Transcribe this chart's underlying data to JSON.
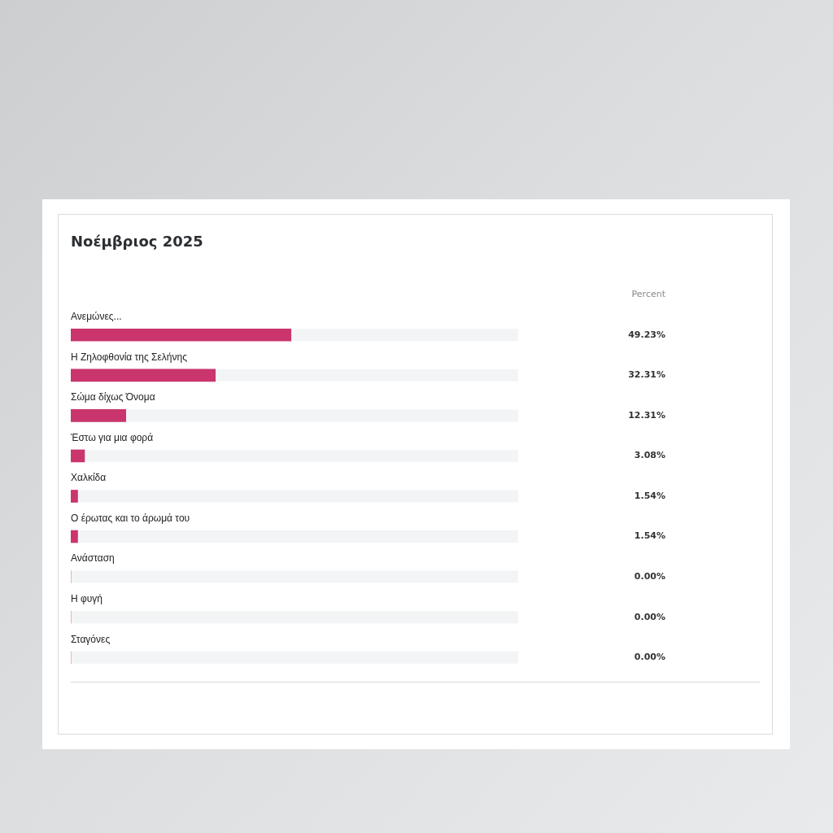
{
  "chart_data": {
    "type": "bar",
    "orientation": "horizontal",
    "title": "Νοέμβριος 2025",
    "categories": [
      "Ανεμώνες...",
      "Η Ζηλοφθονία της Σελήνης",
      "Σώμα δίχως Όνομα",
      "Έστω για μια φορά",
      "Χαλκίδα",
      "Ο έρωτας και το άρωμά του",
      "Ανάσταση",
      "Η φυγή",
      "Σταγόνες"
    ],
    "values": [
      49.23,
      32.31,
      12.31,
      3.08,
      1.54,
      1.54,
      0,
      0,
      0
    ],
    "value_labels": [
      "49.23%",
      "32.31%",
      "12.31%",
      "3.08%",
      "1.54%",
      "1.54%",
      "0.00%",
      "0.00%",
      "0.00%"
    ],
    "color": "#c9356c",
    "xlim": [
      0,
      100
    ],
    "tick_labels": "y",
    "annotations": [
      "Percent"
    ]
  }
}
